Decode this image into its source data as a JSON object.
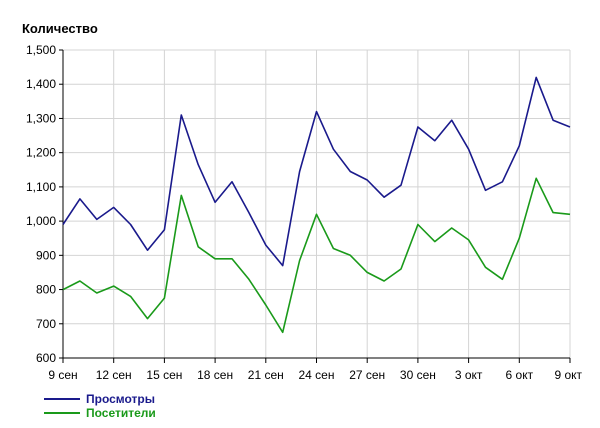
{
  "chart_data": {
    "type": "line",
    "title": "",
    "xlabel": "",
    "ylabel": "Количество",
    "ylim": [
      600,
      1500
    ],
    "yticks": [
      "600",
      "700",
      "800",
      "900",
      "1,000",
      "1,100",
      "1,200",
      "1,300",
      "1,400",
      "1,500"
    ],
    "xticks": [
      "9 сен",
      "12 сен",
      "15 сен",
      "18 сен",
      "21 сен",
      "24 сен",
      "27 сен",
      "30 сен",
      "3 окт",
      "6 окт",
      "9 окт"
    ],
    "x": [
      "9 сен",
      "10 сен",
      "11 сен",
      "12 сен",
      "13 сен",
      "14 сен",
      "15 сен",
      "16 сен",
      "17 сен",
      "18 сен",
      "19 сен",
      "20 сен",
      "21 сен",
      "22 сен",
      "23 сен",
      "24 сен",
      "25 сен",
      "26 сен",
      "27 сен",
      "28 сен",
      "29 сен",
      "30 сен",
      "1 окт",
      "2 окт",
      "3 окт",
      "4 окт",
      "5 окт",
      "6 окт",
      "7 окт",
      "8 окт",
      "9 окт"
    ],
    "grid": true,
    "legend": "bottom-left",
    "series": [
      {
        "name": "Просмотры",
        "color": "#1a1a8c",
        "values": [
          990,
          1065,
          1005,
          1040,
          990,
          915,
          975,
          1310,
          1165,
          1055,
          1115,
          1025,
          930,
          870,
          1145,
          1320,
          1210,
          1145,
          1120,
          1070,
          1105,
          1275,
          1235,
          1295,
          1210,
          1090,
          1115,
          1220,
          1420,
          1295,
          1275
        ]
      },
      {
        "name": "Посетители",
        "color": "#1a9a1a",
        "values": [
          800,
          825,
          790,
          810,
          780,
          715,
          775,
          1075,
          925,
          890,
          890,
          830,
          755,
          675,
          885,
          1020,
          920,
          900,
          850,
          825,
          860,
          990,
          940,
          980,
          945,
          865,
          830,
          950,
          1125,
          1025,
          1020
        ]
      }
    ]
  }
}
